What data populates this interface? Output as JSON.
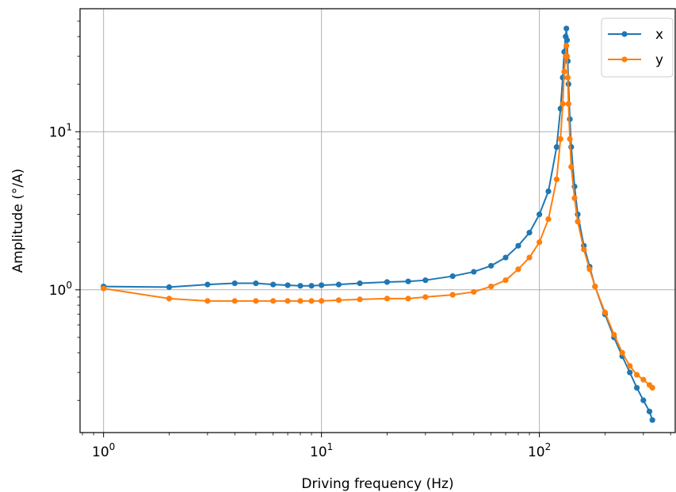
{
  "chart_data": {
    "type": "line",
    "xscale": "log",
    "yscale": "log",
    "xlabel": "Driving frequency (Hz)",
    "ylabel": "Amplitude (°/A)",
    "xlim": [
      0.78,
      420
    ],
    "ylim": [
      0.125,
      60
    ],
    "grid": true,
    "legend_position": "top-right",
    "x_ticks": [
      {
        "base": "10",
        "exp": "0",
        "value": 1
      },
      {
        "base": "10",
        "exp": "1",
        "value": 10
      },
      {
        "base": "10",
        "exp": "2",
        "value": 100
      }
    ],
    "y_ticks": [
      {
        "base": "10",
        "exp": "0",
        "value": 1
      },
      {
        "base": "10",
        "exp": "1",
        "value": 10
      }
    ],
    "series": [
      {
        "name": "x",
        "color": "#1f77b4",
        "x": [
          1,
          2,
          3,
          4,
          5,
          6,
          7,
          8,
          9,
          10,
          12,
          15,
          20,
          25,
          30,
          40,
          50,
          60,
          70,
          80,
          90,
          100,
          110,
          120,
          125,
          128,
          130,
          132,
          133,
          134,
          135,
          136,
          138,
          140,
          145,
          150,
          160,
          170,
          180,
          200,
          220,
          240,
          260,
          280,
          300,
          320,
          330
        ],
        "y": [
          1.05,
          1.04,
          1.08,
          1.1,
          1.1,
          1.08,
          1.07,
          1.06,
          1.06,
          1.07,
          1.08,
          1.1,
          1.12,
          1.13,
          1.15,
          1.22,
          1.3,
          1.42,
          1.6,
          1.9,
          2.3,
          3.0,
          4.2,
          8.0,
          14.0,
          22.0,
          32.0,
          40.0,
          45.0,
          38.0,
          28.0,
          20.0,
          12.0,
          8.0,
          4.5,
          3.0,
          1.9,
          1.4,
          1.05,
          0.7,
          0.5,
          0.38,
          0.3,
          0.24,
          0.2,
          0.17,
          0.15
        ]
      },
      {
        "name": "y",
        "color": "#ff7f0e",
        "x": [
          1,
          2,
          3,
          4,
          5,
          6,
          7,
          8,
          9,
          10,
          12,
          15,
          20,
          25,
          30,
          40,
          50,
          60,
          70,
          80,
          90,
          100,
          110,
          120,
          125,
          128,
          130,
          132,
          133,
          134,
          135,
          136,
          138,
          140,
          145,
          150,
          160,
          170,
          180,
          200,
          220,
          240,
          260,
          280,
          300,
          320,
          330
        ],
        "y": [
          1.02,
          0.88,
          0.85,
          0.85,
          0.85,
          0.85,
          0.85,
          0.85,
          0.85,
          0.85,
          0.86,
          0.87,
          0.88,
          0.88,
          0.9,
          0.93,
          0.97,
          1.05,
          1.15,
          1.35,
          1.6,
          2.0,
          2.8,
          5.0,
          9.0,
          15.0,
          24.0,
          30.0,
          35.0,
          30.0,
          22.0,
          15.0,
          9.0,
          6.0,
          3.8,
          2.7,
          1.8,
          1.35,
          1.05,
          0.72,
          0.52,
          0.4,
          0.33,
          0.29,
          0.27,
          0.25,
          0.24
        ]
      }
    ]
  }
}
